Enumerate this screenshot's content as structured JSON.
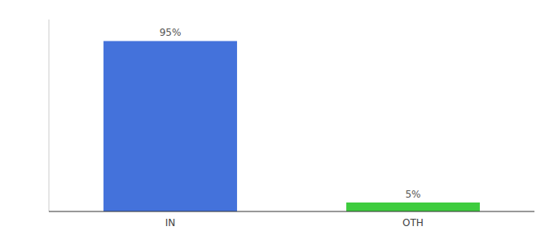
{
  "chart_data": {
    "type": "bar",
    "categories": [
      "IN",
      "OTH"
    ],
    "values": [
      95,
      5
    ],
    "value_labels": [
      "95%",
      "5%"
    ],
    "data_labels": true,
    "colors": [
      "#4472db",
      "#3ecc3e"
    ],
    "ylim": [
      0,
      107
    ],
    "tick_labels": "x",
    "grid": false
  }
}
